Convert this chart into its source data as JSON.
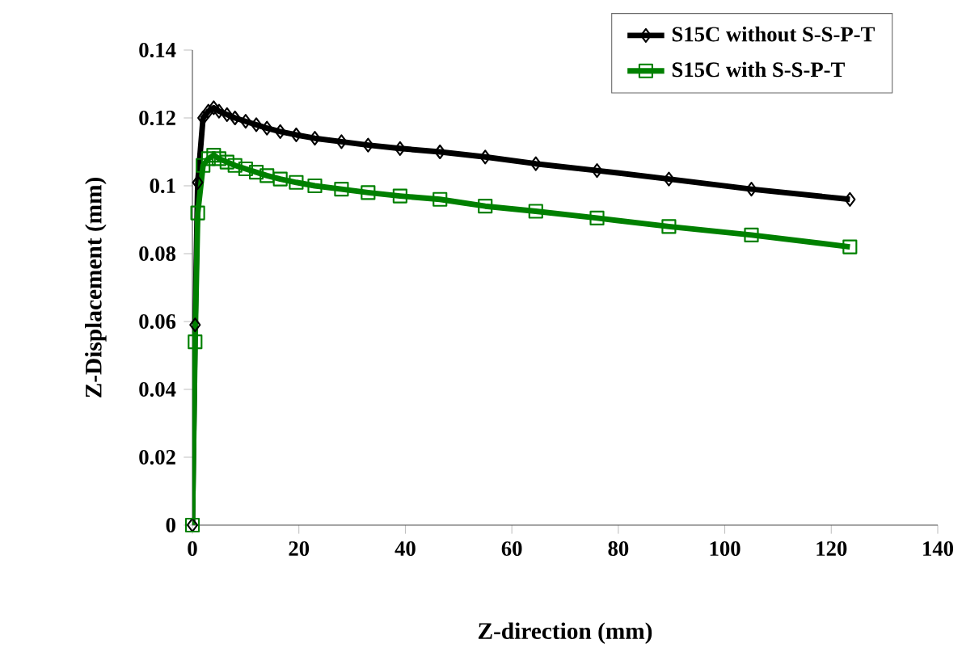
{
  "chart_data": {
    "type": "line",
    "xlabel": "Z-direction (mm)",
    "ylabel": "Z-Displacement (mm)",
    "x": [
      0,
      0.5,
      1,
      2,
      3,
      4,
      5,
      6.5,
      8,
      10,
      12,
      14,
      16.5,
      19.5,
      23,
      28,
      33,
      39,
      46.5,
      55,
      64.5,
      76,
      89.5,
      105,
      123.5
    ],
    "series": [
      {
        "name": "S15C without S-S-P-T",
        "color": "#000000",
        "marker": "diamond",
        "values": [
          0,
          0.059,
          0.101,
          0.12,
          0.122,
          0.123,
          0.122,
          0.121,
          0.12,
          0.119,
          0.118,
          0.117,
          0.116,
          0.115,
          0.114,
          0.113,
          0.112,
          0.111,
          0.11,
          0.1085,
          0.1065,
          0.1045,
          0.102,
          0.099,
          0.096
        ]
      },
      {
        "name": "S15C with S-S-P-T",
        "color": "#008000",
        "marker": "square",
        "values": [
          0,
          0.054,
          0.092,
          0.106,
          0.108,
          0.109,
          0.108,
          0.107,
          0.106,
          0.105,
          0.104,
          0.103,
          0.102,
          0.101,
          0.1,
          0.099,
          0.098,
          0.097,
          0.096,
          0.094,
          0.0925,
          0.0905,
          0.088,
          0.0855,
          0.082
        ]
      }
    ],
    "xlim": [
      0,
      140
    ],
    "xticks": [
      0,
      20,
      40,
      60,
      80,
      100,
      120,
      140
    ],
    "ylim": [
      0,
      0.14
    ],
    "yticks": [
      {
        "value": 0,
        "label": "0"
      },
      {
        "value": 0.02,
        "label": "0.02"
      },
      {
        "value": 0.04,
        "label": "0.04"
      },
      {
        "value": 0.06,
        "label": "0.06"
      },
      {
        "value": 0.08,
        "label": "0.08"
      },
      {
        "value": 0.1,
        "label": "0.1"
      },
      {
        "value": 0.12,
        "label": "0.12"
      },
      {
        "value": 0.14,
        "label": "0.14"
      }
    ],
    "grid": false,
    "legend": "top right",
    "line_style": "solid"
  }
}
